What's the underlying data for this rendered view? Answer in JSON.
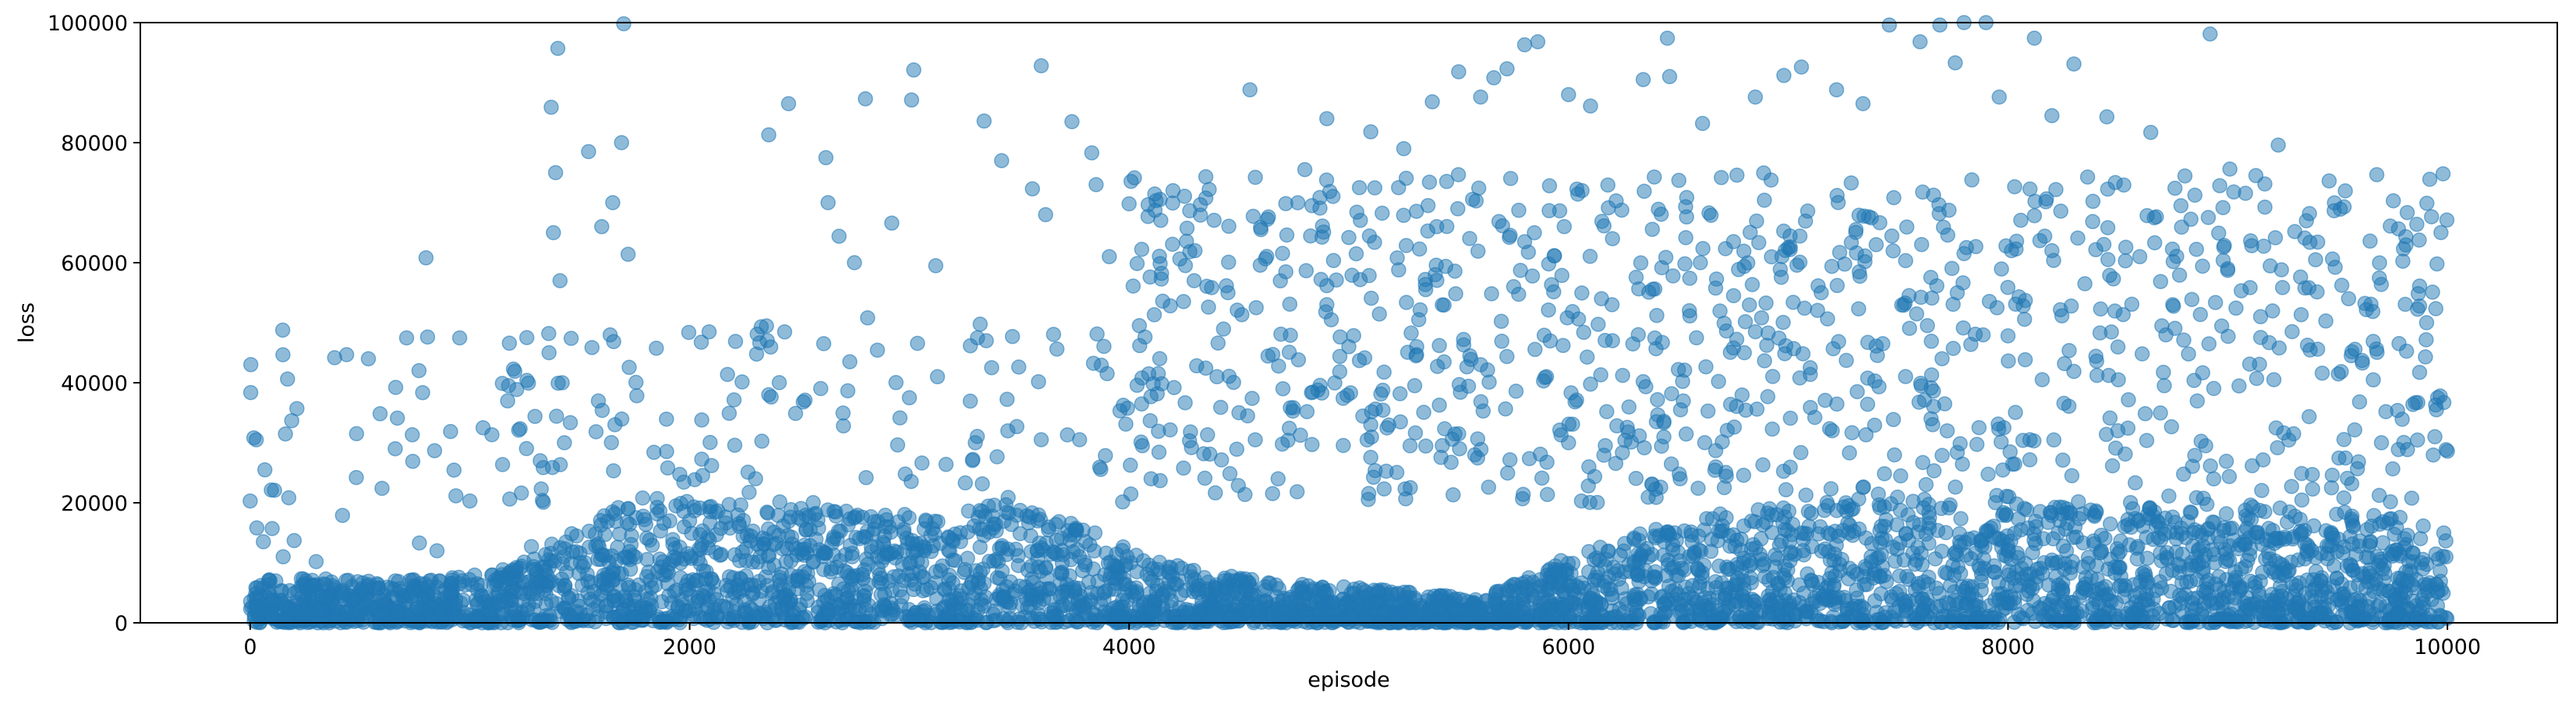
{
  "chart_data": {
    "type": "scatter",
    "title": "",
    "xlabel": "episode",
    "ylabel": "loss",
    "xlim": [
      -500,
      10500
    ],
    "ylim": [
      0,
      100000
    ],
    "x_ticks": [
      0,
      2000,
      4000,
      6000,
      8000,
      10000
    ],
    "y_ticks": [
      0,
      20000,
      40000,
      60000,
      80000,
      100000
    ],
    "x_tick_labels": [
      "0",
      "2000",
      "4000",
      "6000",
      "8000",
      "10000"
    ],
    "y_tick_labels": [
      "0",
      "20000",
      "40000",
      "60000",
      "80000",
      "100000"
    ],
    "grid": false,
    "legend": "none",
    "marker_color": "#1f77b4",
    "marker_alpha": 0.5,
    "episode_range": [
      0,
      10000
    ],
    "series": [
      {
        "points": [
          [
            0,
            20300
          ],
          [
            30,
            15800
          ],
          [
            60,
            13500
          ],
          [
            100,
            15700
          ],
          [
            150,
            11000
          ],
          [
            200,
            13700
          ],
          [
            300,
            10200
          ],
          [
            420,
            17900
          ],
          [
            600,
            22400
          ],
          [
            660,
            29000
          ],
          [
            670,
            34100
          ],
          [
            770,
            13300
          ],
          [
            800,
            60800
          ],
          [
            850,
            12000
          ],
          [
            1000,
            20300
          ],
          [
            1060,
            32500
          ],
          [
            1280,
            12700
          ],
          [
            1320,
            27000
          ],
          [
            1360,
            45000
          ],
          [
            1370,
            85900
          ],
          [
            1380,
            65000
          ],
          [
            1390,
            75000
          ],
          [
            1400,
            95700
          ],
          [
            1410,
            57000
          ],
          [
            1420,
            40000
          ],
          [
            1430,
            30000
          ],
          [
            1540,
            78500
          ],
          [
            1600,
            66000
          ],
          [
            1650,
            70000
          ],
          [
            1660,
            33000
          ],
          [
            1690,
            80000
          ],
          [
            1700,
            99800
          ],
          [
            1720,
            61400
          ],
          [
            2360,
            81300
          ],
          [
            2360,
            38000
          ],
          [
            2450,
            86500
          ],
          [
            2610,
            46500
          ],
          [
            2620,
            77500
          ],
          [
            2630,
            70000
          ],
          [
            2680,
            64400
          ],
          [
            2750,
            60000
          ],
          [
            2800,
            87300
          ],
          [
            2810,
            50800
          ],
          [
            2920,
            66600
          ],
          [
            3010,
            87100
          ],
          [
            3020,
            92100
          ],
          [
            3120,
            59500
          ],
          [
            3340,
            83600
          ],
          [
            3350,
            47000
          ],
          [
            3420,
            77000
          ],
          [
            3560,
            72300
          ],
          [
            3600,
            92800
          ],
          [
            3620,
            68000
          ],
          [
            3740,
            83500
          ],
          [
            3830,
            78300
          ],
          [
            3850,
            73000
          ],
          [
            3910,
            61000
          ],
          [
            4000,
            69800
          ],
          [
            4200,
            72000
          ],
          [
            4550,
            88800
          ],
          [
            4800,
            75500
          ],
          [
            4900,
            84000
          ],
          [
            5100,
            81800
          ],
          [
            5250,
            79000
          ],
          [
            5380,
            86800
          ],
          [
            5500,
            91800
          ],
          [
            5600,
            87600
          ],
          [
            5660,
            90800
          ],
          [
            5720,
            92300
          ],
          [
            5800,
            96300
          ],
          [
            5860,
            96800
          ],
          [
            6000,
            88000
          ],
          [
            6100,
            86100
          ],
          [
            6340,
            90500
          ],
          [
            6450,
            97400
          ],
          [
            6460,
            91000
          ],
          [
            6610,
            83200
          ],
          [
            6850,
            87600
          ],
          [
            6980,
            91200
          ],
          [
            7060,
            92600
          ],
          [
            7220,
            88800
          ],
          [
            7340,
            86500
          ],
          [
            7460,
            99600
          ],
          [
            7600,
            96800
          ],
          [
            7690,
            99600
          ],
          [
            7760,
            93300
          ],
          [
            7800,
            100000
          ],
          [
            7900,
            100000
          ],
          [
            7960,
            87600
          ],
          [
            8120,
            97400
          ],
          [
            8200,
            84500
          ],
          [
            8300,
            93100
          ],
          [
            8450,
            84300
          ],
          [
            8650,
            81700
          ],
          [
            8920,
            98100
          ],
          [
            9010,
            75600
          ],
          [
            9230,
            79600
          ],
          [
            9530,
            69300
          ],
          [
            9920,
            73900
          ],
          [
            9980,
            74800
          ],
          [
            10000,
            28600
          ],
          [
            9900,
            44300
          ],
          [
            9950,
            35500
          ],
          [
            9600,
            36800
          ],
          [
            9430,
            41600
          ],
          [
            9100,
            43100
          ],
          [
            8800,
            47100
          ],
          [
            8400,
            44400
          ],
          [
            8000,
            47800
          ],
          [
            7700,
            44000
          ],
          [
            7400,
            46100
          ],
          [
            7100,
            42500
          ],
          [
            6800,
            45000
          ],
          [
            6500,
            42200
          ],
          [
            6200,
            47000
          ],
          [
            5900,
            41000
          ],
          [
            5600,
            43000
          ],
          [
            5300,
            39500
          ],
          [
            5000,
            46000
          ],
          [
            4700,
            39000
          ],
          [
            4400,
            41000
          ],
          [
            4100,
            24000
          ],
          [
            3900,
            41500
          ],
          [
            3600,
            30500
          ],
          [
            3300,
            30000
          ],
          [
            3000,
            37500
          ],
          [
            2700,
            32800
          ],
          [
            2300,
            24000
          ],
          [
            2100,
            26200
          ],
          [
            1900,
            25800
          ],
          [
            4300,
            62000
          ],
          [
            4600,
            65500
          ],
          [
            5000,
            64200
          ],
          [
            5400,
            66000
          ],
          [
            5800,
            63500
          ],
          [
            6200,
            64000
          ],
          [
            6600,
            60000
          ],
          [
            7000,
            62500
          ],
          [
            7400,
            63000
          ],
          [
            7800,
            61500
          ],
          [
            8200,
            62000
          ],
          [
            8600,
            61000
          ],
          [
            9000,
            59000
          ],
          [
            9400,
            60500
          ],
          [
            9800,
            62300
          ],
          [
            4450,
            55000
          ],
          [
            4900,
            53000
          ],
          [
            5350,
            55500
          ],
          [
            5750,
            56000
          ],
          [
            6150,
            54000
          ],
          [
            6550,
            52000
          ],
          [
            7150,
            55000
          ],
          [
            7550,
            54500
          ],
          [
            7950,
            52500
          ],
          [
            8350,
            56500
          ],
          [
            8750,
            53000
          ],
          [
            9150,
            51000
          ],
          [
            9550,
            54000
          ],
          [
            4500,
            35000
          ],
          [
            5100,
            33000
          ],
          [
            5500,
            31500
          ],
          [
            6000,
            30000
          ],
          [
            6400,
            33500
          ],
          [
            7200,
            32000
          ],
          [
            7650,
            34000
          ],
          [
            8100,
            30500
          ],
          [
            8500,
            32000
          ],
          [
            8900,
            29500
          ],
          [
            9300,
            31500
          ],
          [
            9700,
            30000
          ]
        ]
      }
    ],
    "band_profile": {
      "note_hidden": "",
      "levels": [
        [
          0,
          8000
        ],
        [
          500,
          7000
        ],
        [
          1000,
          8000
        ],
        [
          1300,
          11000
        ],
        [
          1500,
          17000
        ],
        [
          1800,
          21000
        ],
        [
          2200,
          20000
        ],
        [
          2600,
          19000
        ],
        [
          3000,
          18000
        ],
        [
          3400,
          20000
        ],
        [
          3800,
          17000
        ],
        [
          4000,
          12000
        ],
        [
          4400,
          8000
        ],
        [
          5000,
          6000
        ],
        [
          5600,
          4000
        ],
        [
          6000,
          11000
        ],
        [
          6500,
          17000
        ],
        [
          7000,
          20000
        ],
        [
          7500,
          21000
        ],
        [
          8000,
          20000
        ],
        [
          8500,
          19000
        ],
        [
          9000,
          20000
        ],
        [
          9500,
          19000
        ],
        [
          9900,
          17000
        ],
        [
          10000,
          15000
        ]
      ]
    }
  }
}
